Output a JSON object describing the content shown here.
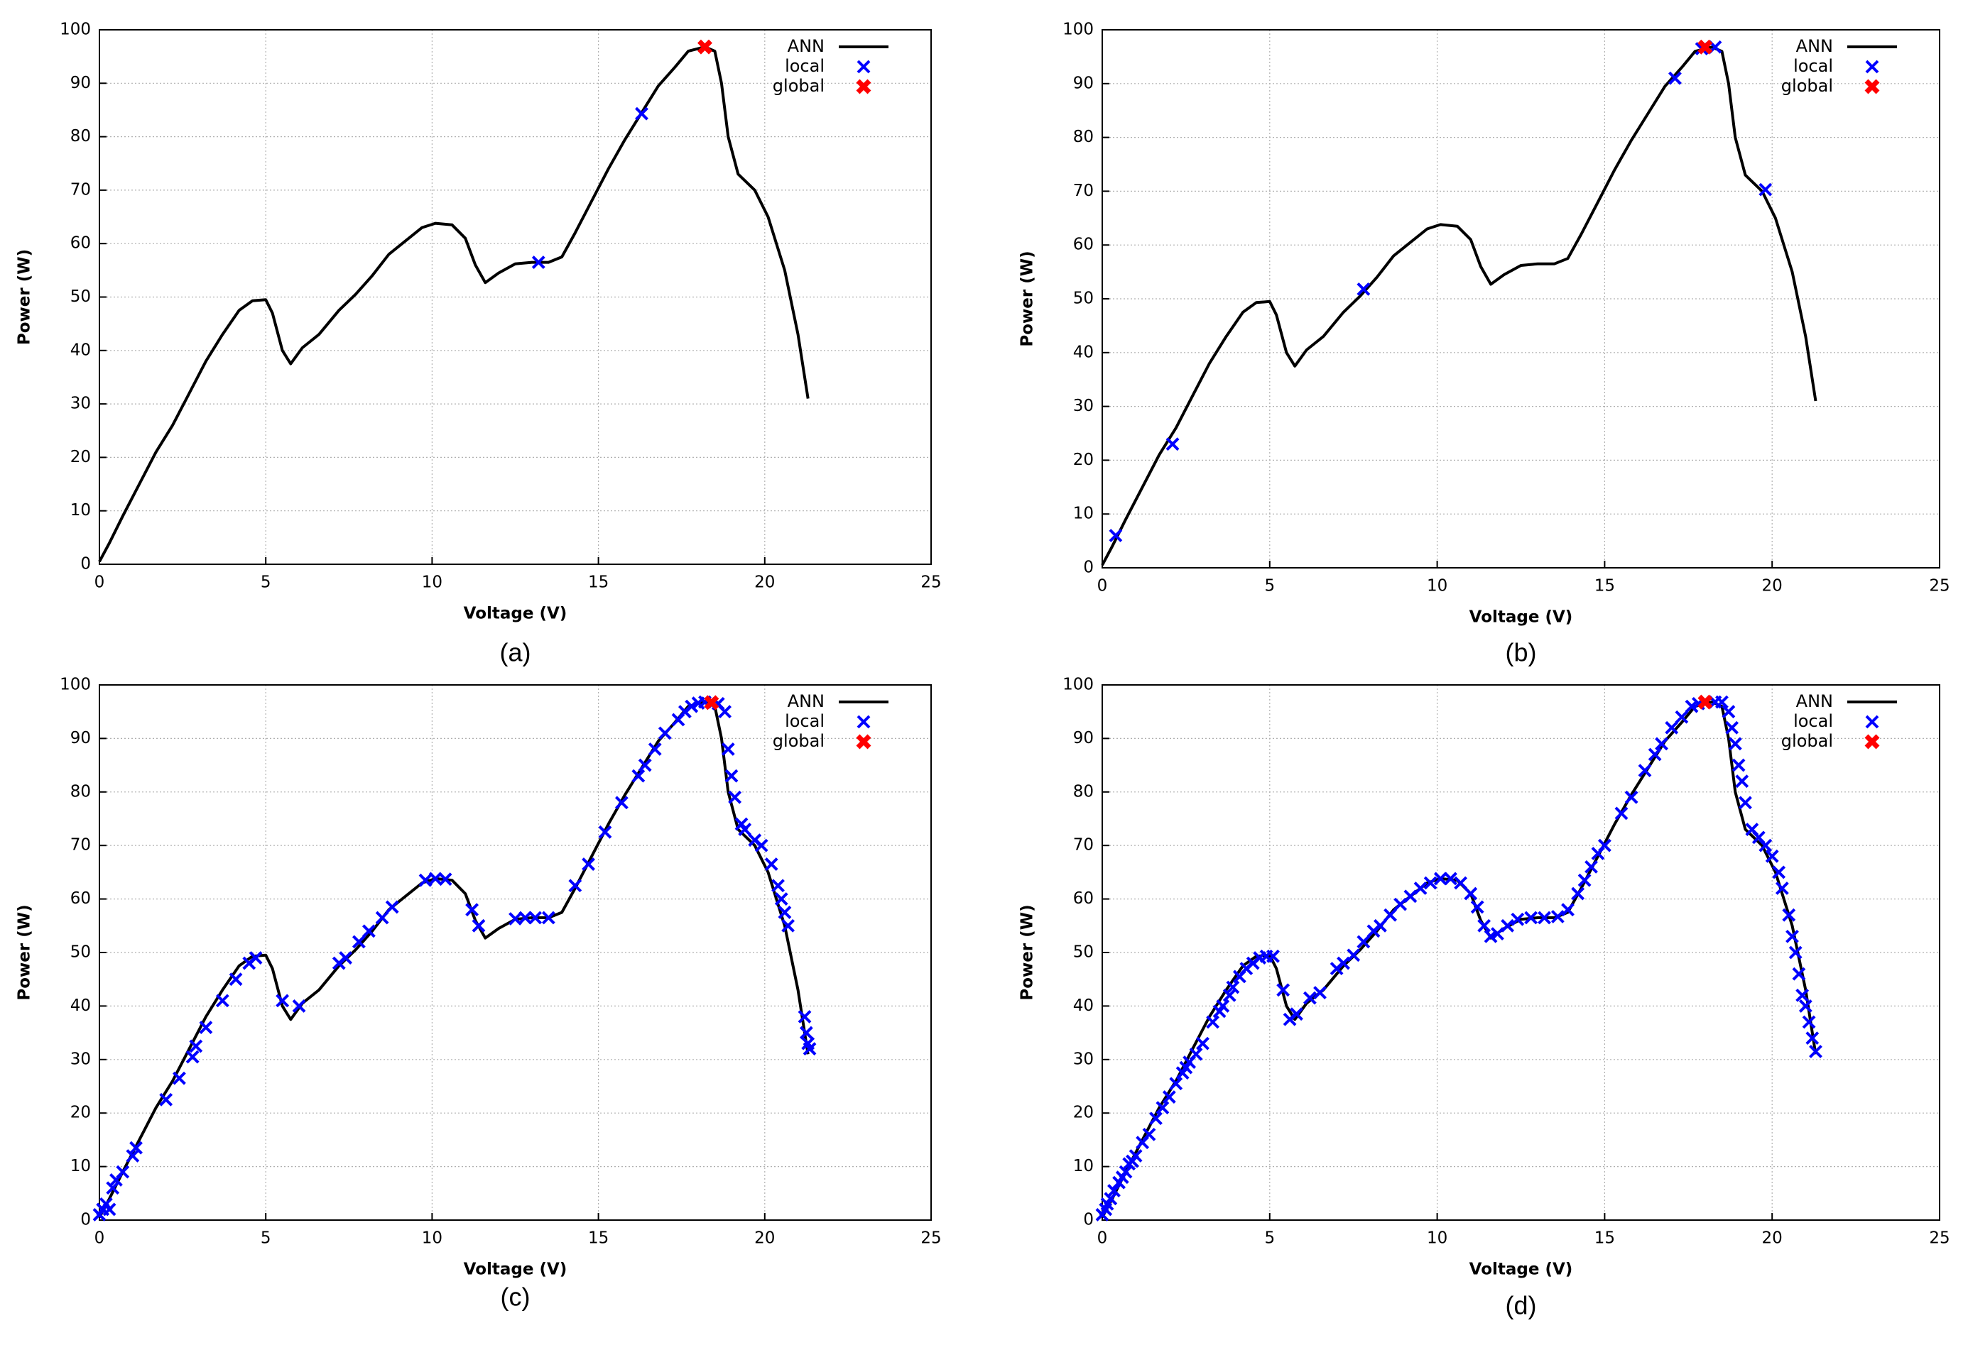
{
  "chart_data": [
    {
      "type": "line",
      "caption": "(a)",
      "x_label": "Voltage (V)",
      "y_label": "Power (W)",
      "xlim": [
        0,
        25
      ],
      "ylim": [
        0,
        100
      ],
      "xticks": [
        0,
        5,
        10,
        15,
        20,
        25
      ],
      "yticks": [
        0,
        10,
        20,
        30,
        40,
        50,
        60,
        70,
        80,
        90,
        100
      ],
      "grid": true,
      "legend": "upper right",
      "series": [
        {
          "name": "ANN",
          "color": "#000000",
          "style": "line",
          "x": [
            0,
            0.3,
            0.7,
            1.2,
            1.7,
            2.2,
            2.7,
            3.2,
            3.7,
            4.2,
            4.6,
            5.0,
            5.2,
            5.5,
            5.75,
            6.1,
            6.6,
            7.2,
            7.7,
            8.2,
            8.7,
            9.2,
            9.7,
            10.1,
            10.6,
            11.0,
            11.3,
            11.6,
            12.0,
            12.5,
            13.0,
            13.5,
            13.9,
            14.3,
            14.8,
            15.3,
            15.8,
            16.3,
            16.8,
            17.3,
            17.7,
            18.2,
            18.5,
            18.7,
            18.9,
            19.2,
            19.7,
            20.1,
            20.6,
            21.0,
            21.3
          ],
          "values": [
            0.5,
            4,
            9,
            15,
            21,
            26,
            32,
            38,
            43,
            47.5,
            49.3,
            49.5,
            47,
            40,
            37.5,
            40.5,
            43,
            47.5,
            50.5,
            54,
            58,
            60.5,
            63,
            63.8,
            63.5,
            61,
            56,
            52.7,
            54.5,
            56.2,
            56.5,
            56.5,
            57.5,
            62,
            68,
            74,
            79.5,
            84.5,
            89.5,
            93,
            96,
            96.8,
            96,
            90,
            80,
            73,
            70,
            65,
            55,
            43,
            31
          ]
        },
        {
          "name": "local",
          "color": "#0000ff",
          "style": "x",
          "x": [
            13.2,
            16.3
          ],
          "values": [
            56.5,
            84.3
          ]
        },
        {
          "name": "global",
          "color": "#ff0000",
          "style": "filled",
          "x": [
            18.2
          ],
          "values": [
            96.8
          ]
        }
      ]
    },
    {
      "type": "line",
      "caption": "(b)",
      "x_label": "Voltage (V)",
      "y_label": "Power (W)",
      "xlim": [
        0,
        25
      ],
      "ylim": [
        0,
        100
      ],
      "xticks": [
        0,
        5,
        10,
        15,
        20,
        25
      ],
      "yticks": [
        0,
        10,
        20,
        30,
        40,
        50,
        60,
        70,
        80,
        90,
        100
      ],
      "grid": true,
      "legend": "upper right",
      "series": [
        {
          "name": "ANN",
          "color": "#000000",
          "style": "line",
          "x": [
            0,
            0.3,
            0.7,
            1.2,
            1.7,
            2.2,
            2.7,
            3.2,
            3.7,
            4.2,
            4.6,
            5.0,
            5.2,
            5.5,
            5.75,
            6.1,
            6.6,
            7.2,
            7.7,
            8.2,
            8.7,
            9.2,
            9.7,
            10.1,
            10.6,
            11.0,
            11.3,
            11.6,
            12.0,
            12.5,
            13.0,
            13.5,
            13.9,
            14.3,
            14.8,
            15.3,
            15.8,
            16.3,
            16.8,
            17.3,
            17.7,
            18.2,
            18.5,
            18.7,
            18.9,
            19.2,
            19.7,
            20.1,
            20.6,
            21.0,
            21.3
          ],
          "values": [
            0.5,
            4,
            9,
            15,
            21,
            26,
            32,
            38,
            43,
            47.5,
            49.3,
            49.5,
            47,
            40,
            37.5,
            40.5,
            43,
            47.5,
            50.5,
            54,
            58,
            60.5,
            63,
            63.8,
            63.5,
            61,
            56,
            52.7,
            54.5,
            56.2,
            56.5,
            56.5,
            57.5,
            62,
            68,
            74,
            79.5,
            84.5,
            89.5,
            93,
            96,
            96.8,
            96,
            90,
            80,
            73,
            70,
            65,
            55,
            43,
            31
          ]
        },
        {
          "name": "local",
          "color": "#0000ff",
          "style": "x",
          "x": [
            0.4,
            2.1,
            7.8,
            17.1,
            17.9,
            18.3,
            19.8
          ],
          "values": [
            6,
            23,
            51.8,
            91,
            96.5,
            96.8,
            70.3
          ]
        },
        {
          "name": "global",
          "color": "#ff0000",
          "style": "filled",
          "x": [
            18.0
          ],
          "values": [
            96.8
          ]
        }
      ]
    },
    {
      "type": "line",
      "caption": "(c)",
      "x_label": "Voltage (V)",
      "y_label": "Power (W)",
      "xlim": [
        0,
        25
      ],
      "ylim": [
        0,
        100
      ],
      "xticks": [
        0,
        5,
        10,
        15,
        20,
        25
      ],
      "yticks": [
        0,
        10,
        20,
        30,
        40,
        50,
        60,
        70,
        80,
        90,
        100
      ],
      "grid": true,
      "legend": "upper right",
      "series": [
        {
          "name": "ANN",
          "color": "#000000",
          "style": "line",
          "x": [
            0,
            0.3,
            0.7,
            1.2,
            1.7,
            2.2,
            2.7,
            3.2,
            3.7,
            4.2,
            4.6,
            5.0,
            5.2,
            5.5,
            5.75,
            6.1,
            6.6,
            7.2,
            7.7,
            8.2,
            8.7,
            9.2,
            9.7,
            10.1,
            10.6,
            11.0,
            11.3,
            11.6,
            12.0,
            12.5,
            13.0,
            13.5,
            13.9,
            14.3,
            14.8,
            15.3,
            15.8,
            16.3,
            16.8,
            17.3,
            17.7,
            18.2,
            18.5,
            18.7,
            18.9,
            19.2,
            19.7,
            20.1,
            20.6,
            21.0,
            21.3
          ],
          "values": [
            0.5,
            4,
            9,
            15,
            21,
            26,
            32,
            38,
            43,
            47.5,
            49.3,
            49.5,
            47,
            40,
            37.5,
            40.5,
            43,
            47.5,
            50.5,
            54,
            58,
            60.5,
            63,
            63.8,
            63.5,
            61,
            56,
            52.7,
            54.5,
            56.2,
            56.5,
            56.5,
            57.5,
            62,
            68,
            74,
            79.5,
            84.5,
            89.5,
            93,
            96,
            96.8,
            96,
            90,
            80,
            73,
            70,
            65,
            55,
            43,
            31
          ]
        },
        {
          "name": "local",
          "color": "#0000ff",
          "style": "x",
          "x": [
            0,
            0.1,
            0.2,
            0.3,
            0.4,
            0.5,
            0.7,
            1.0,
            1.1,
            2.0,
            2.4,
            2.8,
            2.9,
            3.2,
            3.7,
            4.1,
            4.5,
            4.7,
            5.5,
            6.0,
            7.2,
            7.4,
            7.8,
            8.1,
            8.5,
            8.8,
            9.8,
            10.1,
            10.4,
            11.2,
            11.4,
            12.5,
            12.8,
            13.1,
            13.5,
            14.3,
            14.7,
            15.2,
            15.7,
            16.2,
            16.4,
            16.7,
            17.0,
            17.4,
            17.6,
            17.8,
            18.0,
            18.2,
            18.6,
            18.8,
            18.9,
            19.0,
            19.1,
            19.3,
            19.4,
            19.7,
            19.9,
            20.2,
            20.4,
            20.5,
            20.6,
            20.7,
            21.2,
            21.25,
            21.3,
            21.35
          ],
          "values": [
            1,
            2,
            3,
            2,
            6,
            7.5,
            9,
            12,
            13.5,
            22.5,
            26.5,
            30.5,
            32.5,
            36,
            41,
            45,
            48,
            49,
            41,
            40,
            48,
            49,
            52,
            54,
            56.5,
            58.5,
            63.5,
            63.8,
            63.7,
            58,
            55,
            56.3,
            56.5,
            56.5,
            56.5,
            62.5,
            66.5,
            72.5,
            78,
            83,
            85,
            88,
            91,
            93.5,
            95,
            96,
            96.6,
            96.8,
            96.5,
            95,
            88,
            83,
            79,
            74,
            73,
            71,
            70,
            66.5,
            62.5,
            60,
            57.5,
            55,
            38,
            35,
            33,
            32
          ]
        },
        {
          "name": "global",
          "color": "#ff0000",
          "style": "filled",
          "x": [
            18.4
          ],
          "values": [
            96.7
          ]
        }
      ]
    },
    {
      "type": "line",
      "caption": "(d)",
      "x_label": "Voltage (V)",
      "y_label": "Power (W)",
      "xlim": [
        0,
        25
      ],
      "ylim": [
        0,
        100
      ],
      "xticks": [
        0,
        5,
        10,
        15,
        20,
        25
      ],
      "yticks": [
        0,
        10,
        20,
        30,
        40,
        50,
        60,
        70,
        80,
        90,
        100
      ],
      "grid": true,
      "legend": "upper right",
      "series": [
        {
          "name": "ANN",
          "color": "#000000",
          "style": "line",
          "x": [
            0,
            0.3,
            0.7,
            1.2,
            1.7,
            2.2,
            2.7,
            3.2,
            3.7,
            4.2,
            4.6,
            5.0,
            5.2,
            5.5,
            5.75,
            6.1,
            6.6,
            7.2,
            7.7,
            8.2,
            8.7,
            9.2,
            9.7,
            10.1,
            10.6,
            11.0,
            11.3,
            11.6,
            12.0,
            12.5,
            13.0,
            13.5,
            13.9,
            14.3,
            14.8,
            15.3,
            15.8,
            16.3,
            16.8,
            17.3,
            17.7,
            18.2,
            18.5,
            18.7,
            18.9,
            19.2,
            19.7,
            20.1,
            20.6,
            21.0,
            21.3
          ],
          "values": [
            0.5,
            4,
            9,
            15,
            21,
            26,
            32,
            38,
            43,
            47.5,
            49.3,
            49.5,
            47,
            40,
            37.5,
            40.5,
            43,
            47.5,
            50.5,
            54,
            58,
            60.5,
            63,
            63.8,
            63.5,
            61,
            56,
            52.7,
            54.5,
            56.2,
            56.5,
            56.5,
            57.5,
            62,
            68,
            74,
            79.5,
            84.5,
            89.5,
            93,
            96,
            96.8,
            96,
            90,
            80,
            73,
            70,
            65,
            55,
            43,
            31
          ]
        },
        {
          "name": "local",
          "color": "#0000ff",
          "style": "x",
          "x": [
            0,
            0.1,
            0.15,
            0.25,
            0.35,
            0.5,
            0.6,
            0.7,
            0.8,
            0.9,
            1.0,
            1.2,
            1.4,
            1.6,
            1.8,
            2.0,
            2.2,
            2.4,
            2.5,
            2.6,
            2.8,
            3.0,
            3.3,
            3.5,
            3.6,
            3.8,
            3.9,
            4.1,
            4.3,
            4.5,
            4.7,
            4.9,
            5.1,
            5.4,
            5.6,
            5.8,
            6.2,
            6.5,
            7.0,
            7.2,
            7.5,
            7.8,
            8.1,
            8.3,
            8.6,
            8.9,
            9.2,
            9.5,
            9.8,
            10.1,
            10.4,
            10.7,
            11.0,
            11.2,
            11.4,
            11.6,
            11.8,
            12.1,
            12.4,
            12.8,
            13.2,
            13.6,
            13.9,
            14.2,
            14.4,
            14.6,
            14.8,
            15.0,
            15.5,
            15.8,
            16.2,
            16.5,
            16.7,
            17.0,
            17.3,
            17.6,
            17.8,
            18.3,
            18.5,
            18.7,
            18.8,
            18.9,
            19.0,
            19.1,
            19.2,
            19.4,
            19.6,
            19.8,
            20.0,
            20.2,
            20.3,
            20.5,
            20.6,
            20.7,
            20.8,
            20.9,
            21.0,
            21.1,
            21.2,
            21.3
          ],
          "values": [
            1,
            2,
            3,
            4,
            5.5,
            7,
            8,
            9,
            10.5,
            11,
            12,
            14.5,
            16,
            19,
            21,
            23,
            25.5,
            27.5,
            28.5,
            29.5,
            31,
            33,
            37,
            39,
            40,
            42,
            43.5,
            45.5,
            47,
            48,
            49,
            49.3,
            49.3,
            43,
            37.5,
            38.5,
            41.5,
            42.5,
            47,
            48,
            49.5,
            52,
            54,
            55,
            57,
            59,
            60.5,
            62,
            63,
            63.8,
            63.8,
            63,
            61,
            58.5,
            55,
            53,
            53.5,
            55,
            56.2,
            56.5,
            56.5,
            56.7,
            58,
            61,
            63.5,
            66,
            68.5,
            70,
            76,
            79,
            84,
            87,
            89,
            92,
            94,
            96,
            96.5,
            96.8,
            96.8,
            95,
            92,
            89,
            85,
            82,
            78,
            73,
            71.5,
            70,
            68,
            65,
            62,
            57,
            53,
            50,
            46,
            42,
            40,
            37,
            34,
            31.5
          ]
        },
        {
          "name": "global",
          "color": "#ff0000",
          "style": "filled",
          "x": [
            18.0
          ],
          "values": [
            96.8
          ]
        }
      ]
    }
  ]
}
